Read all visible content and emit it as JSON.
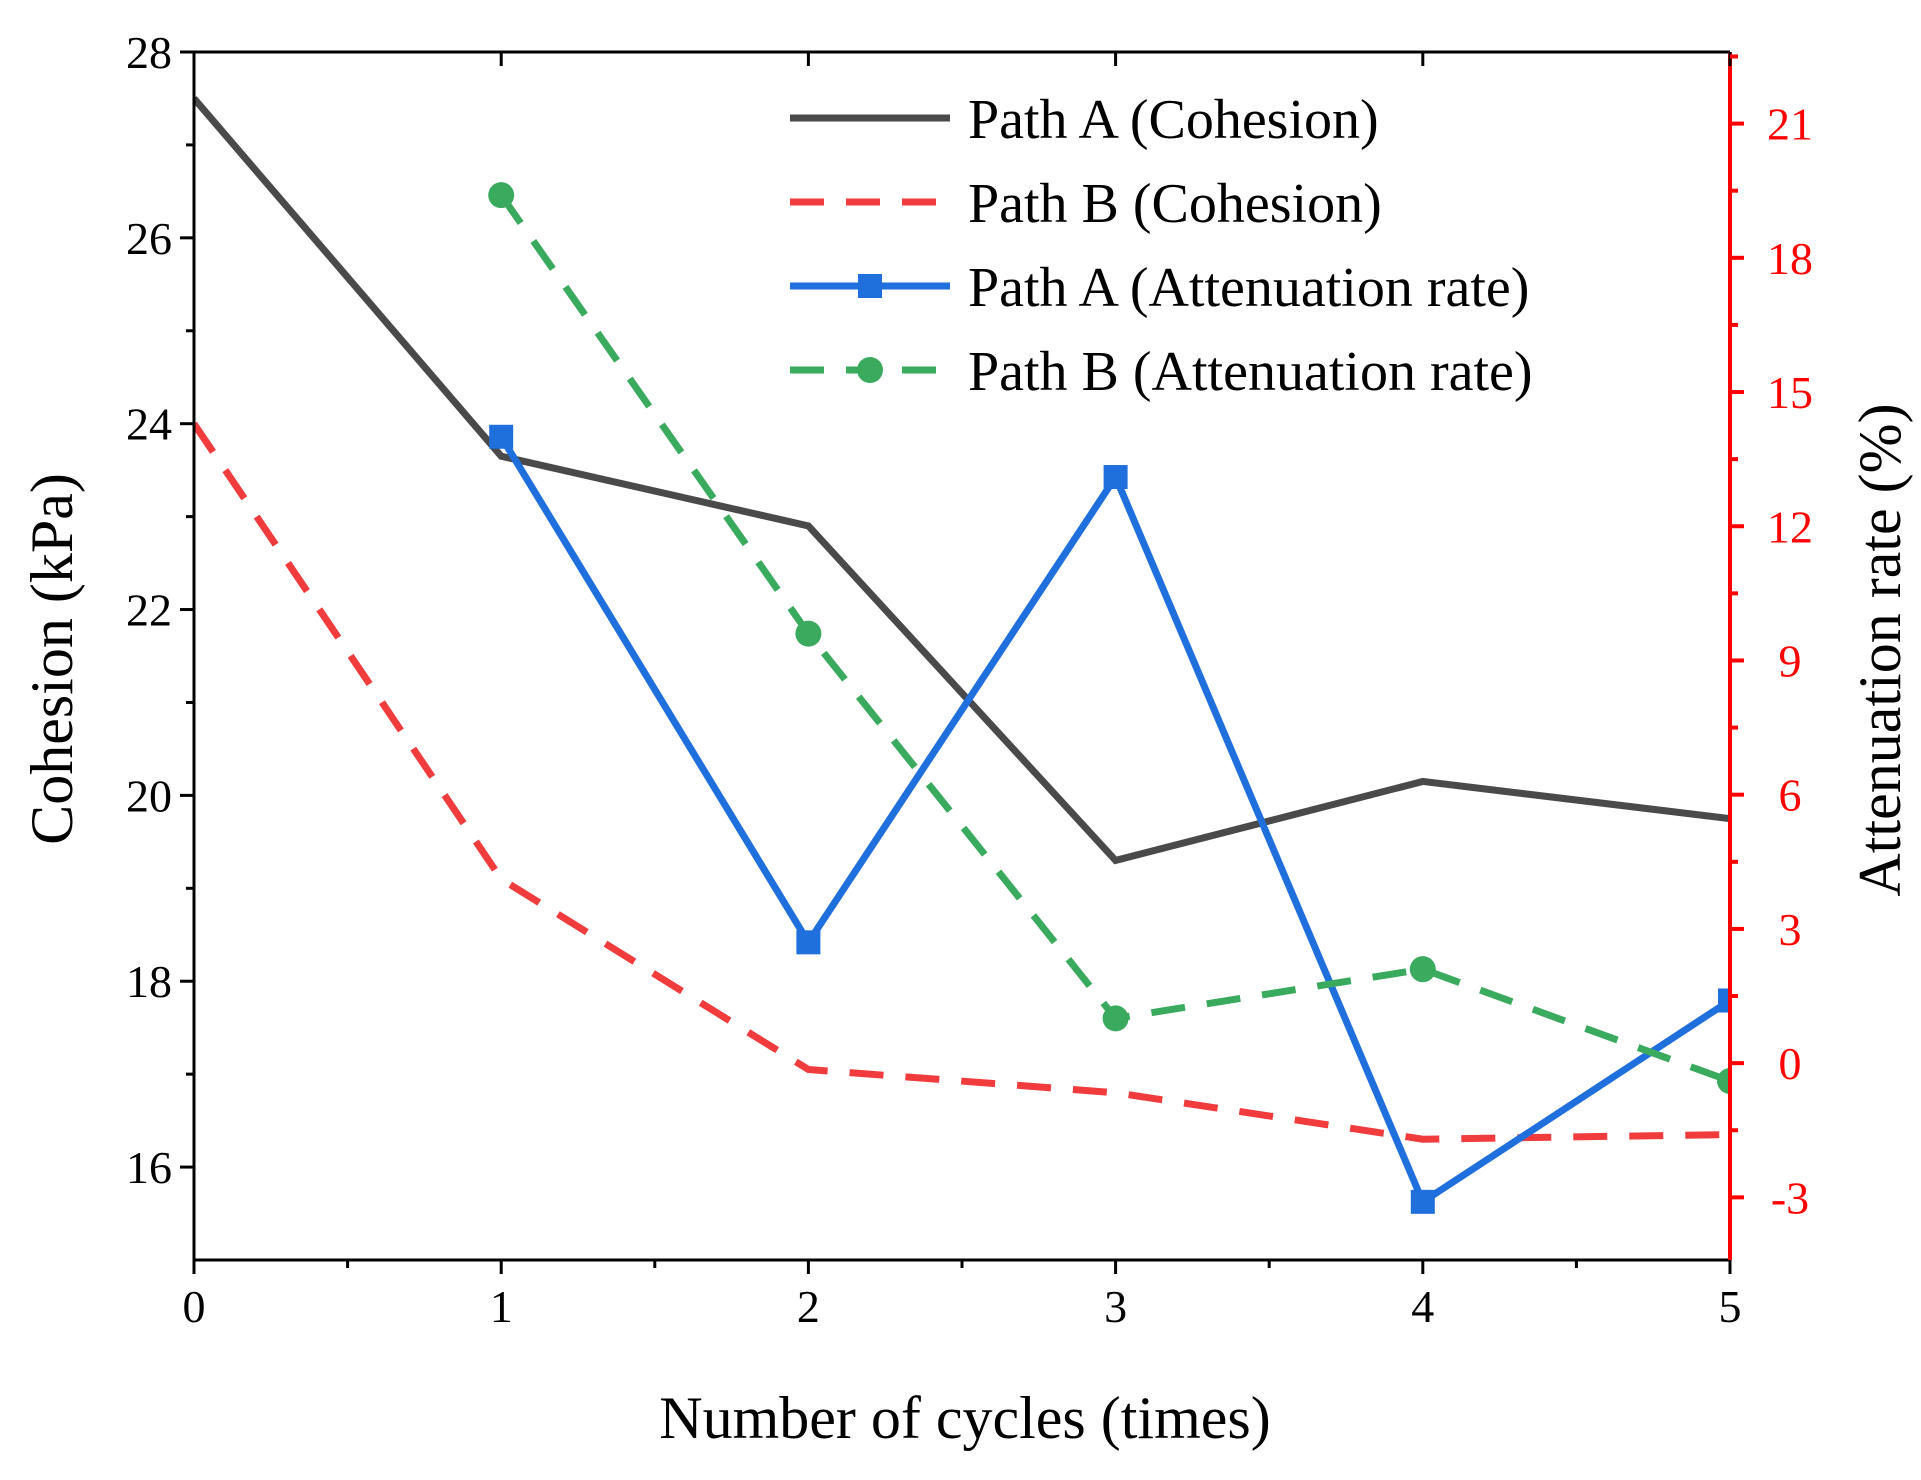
{
  "chart_data": {
    "type": "line",
    "x": [
      0,
      1,
      2,
      3,
      4,
      5
    ],
    "xlabel": "Number of cycles (times)",
    "ylabel_left": "Cohesion (kPa)",
    "ylabel_right": "Attenuation rate (%)",
    "xlim": [
      0,
      5
    ],
    "ylim_left": [
      15,
      28
    ],
    "ylim_right": [
      -4.4,
      22.6
    ],
    "x_ticks": [
      "0",
      "1",
      "2",
      "3",
      "4",
      "5"
    ],
    "y_left_ticks": [
      "16",
      "18",
      "20",
      "22",
      "24",
      "26",
      "28"
    ],
    "y_right_ticks": [
      "-3",
      "0",
      "3",
      "6",
      "9",
      "12",
      "15",
      "18",
      "21"
    ],
    "grid": false,
    "legend_position": "top-right",
    "series": [
      {
        "name": "Path A (Cohesion)",
        "axis": "left",
        "style": "solid",
        "marker": "none",
        "color": "#4a4a4a",
        "x": [
          0,
          1,
          2,
          3,
          4,
          5
        ],
        "values": [
          27.5,
          23.65,
          22.9,
          19.3,
          20.15,
          19.75
        ]
      },
      {
        "name": "Path B (Cohesion)",
        "axis": "left",
        "style": "dashed",
        "marker": "none",
        "color": "#f03c3c",
        "x": [
          0,
          1,
          2,
          3,
          4,
          5
        ],
        "values": [
          24.0,
          19.1,
          17.05,
          16.8,
          16.3,
          16.35
        ]
      },
      {
        "name": "Path A (Attenuation rate)",
        "axis": "right",
        "style": "solid",
        "marker": "square",
        "color": "#1f6fdc",
        "x": [
          1,
          2,
          3,
          4,
          5
        ],
        "values": [
          14.0,
          2.7,
          13.1,
          -3.1,
          1.4
        ]
      },
      {
        "name": "Path B (Attenuation rate)",
        "axis": "right",
        "style": "dashed",
        "marker": "circle",
        "color": "#3aaa5e",
        "x": [
          1,
          2,
          3,
          4,
          5
        ],
        "values": [
          19.4,
          9.6,
          1.0,
          2.1,
          -0.4
        ]
      }
    ]
  },
  "colors": {
    "axis": "#000000",
    "right_axis": "#ff0000"
  }
}
